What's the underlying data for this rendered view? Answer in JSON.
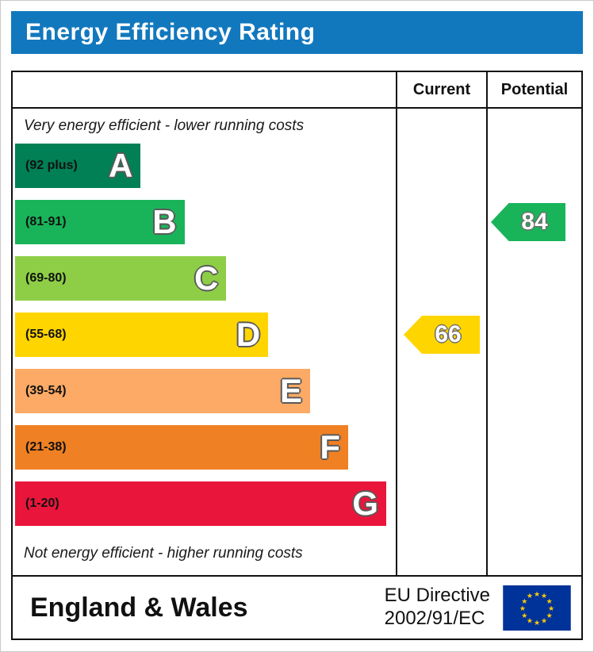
{
  "title": "Energy Efficiency Rating",
  "title_bar_color": "#1278be",
  "columns": {
    "current": "Current",
    "potential": "Potential"
  },
  "top_note": "Very energy efficient - lower running costs",
  "bottom_note": "Not energy efficient - higher running costs",
  "bands": [
    {
      "letter": "A",
      "range": "(92 plus)",
      "color": "#008054",
      "width_pct": 33
    },
    {
      "letter": "B",
      "range": "(81-91)",
      "color": "#19b459",
      "width_pct": 44.5
    },
    {
      "letter": "C",
      "range": "(69-80)",
      "color": "#8dce46",
      "width_pct": 55.5
    },
    {
      "letter": "D",
      "range": "(55-68)",
      "color": "#ffd500",
      "width_pct": 66.5
    },
    {
      "letter": "E",
      "range": "(39-54)",
      "color": "#fcaa65",
      "width_pct": 77.5
    },
    {
      "letter": "F",
      "range": "(21-38)",
      "color": "#ef8023",
      "width_pct": 87.5
    },
    {
      "letter": "G",
      "range": "(1-20)",
      "color": "#e9153b",
      "width_pct": 97.5
    }
  ],
  "current": {
    "value": "66",
    "color": "#ffd500",
    "band_index": 3
  },
  "potential": {
    "value": "84",
    "color": "#19b459",
    "band_index": 1
  },
  "footer": {
    "region": "England & Wales",
    "directive_line1": "EU Directive",
    "directive_line2": "2002/91/EC",
    "flag": {
      "background": "#003399",
      "star_color": "#ffcc00"
    }
  },
  "chart_data": {
    "type": "bar",
    "title": "Energy Efficiency Rating",
    "orientation": "horizontal",
    "categories": [
      "A (92 plus)",
      "B (81-91)",
      "C (69-80)",
      "D (55-68)",
      "E (39-54)",
      "F (21-38)",
      "G (1-20)"
    ],
    "values": [
      33,
      44.5,
      55.5,
      66.5,
      77.5,
      87.5,
      97.5
    ],
    "value_unit": "relative bar length (percent of band area)",
    "band_colors": [
      "#008054",
      "#19b459",
      "#8dce46",
      "#ffd500",
      "#fcaa65",
      "#ef8023",
      "#e9153b"
    ],
    "annotations": [
      {
        "label": "Current",
        "value": 66,
        "band": "D",
        "color": "#ffd500"
      },
      {
        "label": "Potential",
        "value": 84,
        "band": "B",
        "color": "#19b459"
      }
    ],
    "top_note": "Very energy efficient - lower running costs",
    "bottom_note": "Not energy efficient - higher running costs",
    "footer": "England & Wales — EU Directive 2002/91/EC"
  }
}
